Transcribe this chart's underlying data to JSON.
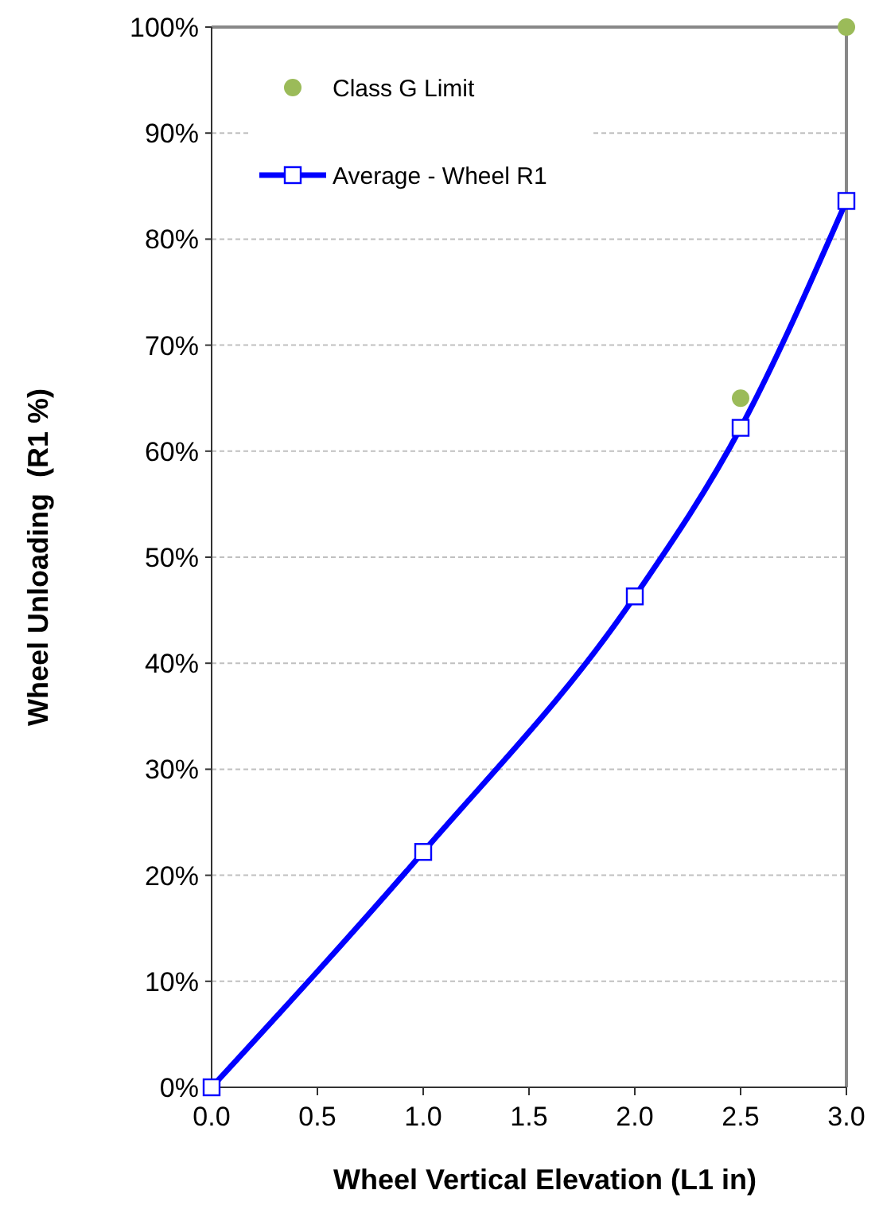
{
  "chart_data": {
    "type": "line",
    "xlabel": "Wheel Vertical Elevation (L1 in)",
    "ylabel": "Wheel Unloading  (R1 %)",
    "xlim": [
      0,
      3
    ],
    "xticks": [
      {
        "value": 0,
        "label": "0.0"
      },
      {
        "value": 0.5,
        "label": "0.5"
      },
      {
        "value": 1,
        "label": "1.0"
      },
      {
        "value": 1.5,
        "label": "1.5"
      },
      {
        "value": 2,
        "label": "2.0"
      },
      {
        "value": 2.5,
        "label": "2.5"
      },
      {
        "value": 3,
        "label": "3.0"
      }
    ],
    "ylim": [
      0,
      100
    ],
    "yticks": [
      {
        "value": 0,
        "label": "0%"
      },
      {
        "value": 10,
        "label": "10%"
      },
      {
        "value": 20,
        "label": "20%"
      },
      {
        "value": 30,
        "label": "30%"
      },
      {
        "value": 40,
        "label": "40%"
      },
      {
        "value": 50,
        "label": "50%"
      },
      {
        "value": 60,
        "label": "60%"
      },
      {
        "value": 70,
        "label": "70%"
      },
      {
        "value": 80,
        "label": "80%"
      },
      {
        "value": 90,
        "label": "90%"
      },
      {
        "value": 100,
        "label": "100%"
      }
    ],
    "grid": "y",
    "legend": "top left",
    "line_style": "solid",
    "series": [
      {
        "name": "Class G Limit",
        "type": "scatter",
        "marker": "circle",
        "color": "#9bbb59",
        "x": [
          2.5,
          3.0
        ],
        "values": [
          65,
          100
        ]
      },
      {
        "name": "Average - Wheel R1",
        "marker": "square",
        "color": "#0000ff",
        "x": [
          0,
          1,
          2,
          2.5,
          3
        ],
        "values": [
          0,
          22.2,
          46.3,
          62.2,
          83.6
        ]
      }
    ]
  }
}
